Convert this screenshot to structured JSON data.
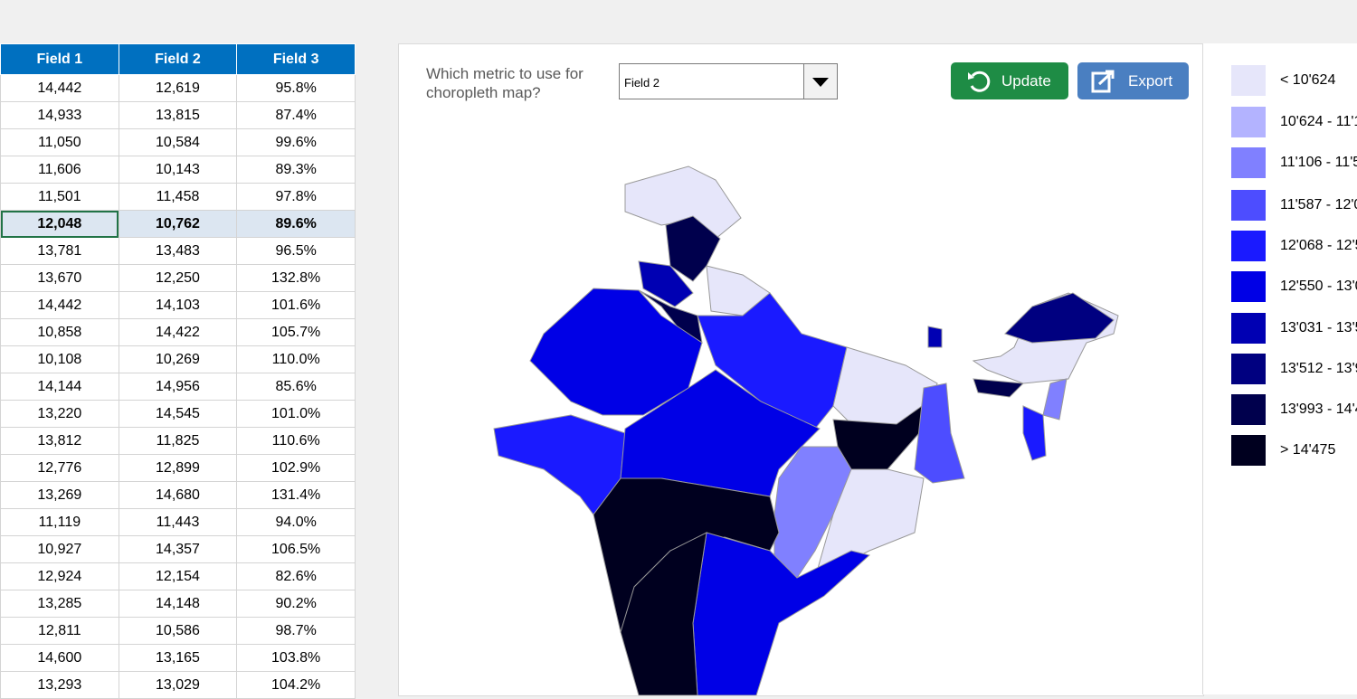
{
  "table": {
    "header": [
      "Field 1",
      "Field 2",
      "Field 3"
    ],
    "rows": [
      [
        "14,442",
        "12,619",
        "95.8%"
      ],
      [
        "14,933",
        "13,815",
        "87.4%"
      ],
      [
        "11,050",
        "10,584",
        "99.6%"
      ],
      [
        "11,606",
        "10,143",
        "89.3%"
      ],
      [
        "11,501",
        "11,458",
        "97.8%"
      ],
      [
        "12,048",
        "10,762",
        "89.6%"
      ],
      [
        "13,781",
        "13,483",
        "96.5%"
      ],
      [
        "13,670",
        "12,250",
        "132.8%"
      ],
      [
        "14,442",
        "14,103",
        "101.6%"
      ],
      [
        "10,858",
        "14,422",
        "105.7%"
      ],
      [
        "10,108",
        "10,269",
        "110.0%"
      ],
      [
        "14,144",
        "14,956",
        "85.6%"
      ],
      [
        "13,220",
        "14,545",
        "101.0%"
      ],
      [
        "13,812",
        "11,825",
        "110.6%"
      ],
      [
        "12,776",
        "12,899",
        "102.9%"
      ],
      [
        "13,269",
        "14,680",
        "131.4%"
      ],
      [
        "11,119",
        "11,443",
        "94.0%"
      ],
      [
        "10,927",
        "14,357",
        "106.5%"
      ],
      [
        "12,924",
        "12,154",
        "82.6%"
      ],
      [
        "13,285",
        "14,148",
        "90.2%"
      ],
      [
        "12,811",
        "10,586",
        "98.7%"
      ],
      [
        "14,600",
        "13,165",
        "103.8%"
      ],
      [
        "13,293",
        "13,029",
        "104.2%"
      ]
    ]
  },
  "controls": {
    "question": "Which metric to use for choropleth map?",
    "dropdown": "Field 2",
    "update": "Update",
    "export": "Export"
  },
  "legend": {
    "items": [
      {
        "label": "< 10'624",
        "color": "#e6e6fa"
      },
      {
        "label": "10'624 - 11'1",
        "color": "#b3b3ff"
      },
      {
        "label": "11'106 - 11'5",
        "color": "#8080ff"
      },
      {
        "label": "11'587 - 12'0",
        "color": "#4d4dff"
      },
      {
        "label": "12'068 - 12'5",
        "color": "#1a1aff"
      },
      {
        "label": "12'550 - 13'0",
        "color": "#0000e6"
      },
      {
        "label": "13'031 - 13'5",
        "color": "#0000b3"
      },
      {
        "label": "13'512 - 13'9",
        "color": "#000080"
      },
      {
        "label": "13'993 - 14'4",
        "color": "#00004d"
      },
      {
        "label": "> 14'475",
        "color": "#00001f"
      }
    ]
  }
}
